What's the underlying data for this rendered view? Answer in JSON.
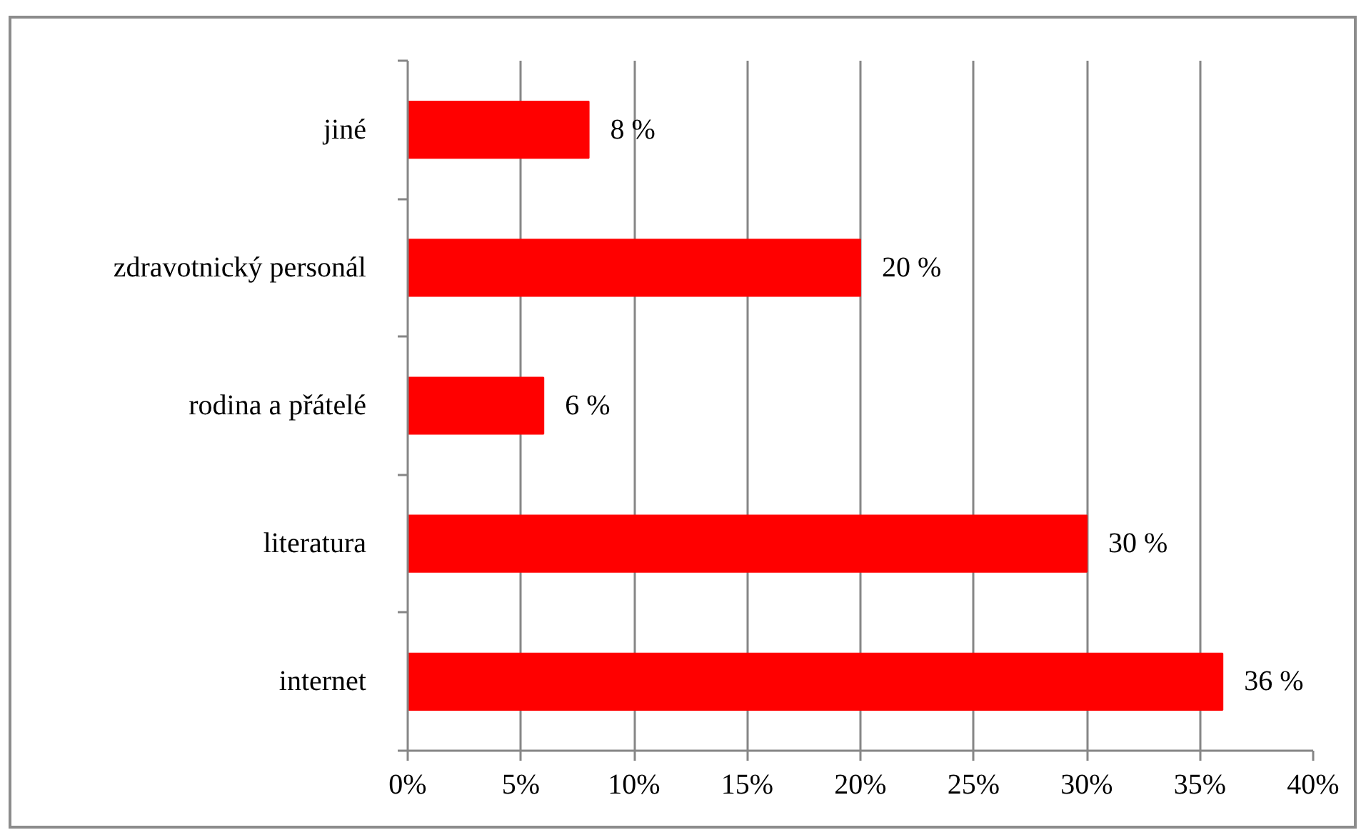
{
  "chart_data": {
    "type": "bar",
    "orientation": "horizontal",
    "categories": [
      "jiné",
      "zdravotnický personál",
      "rodina a přátelé",
      "literatura",
      "internet"
    ],
    "values": [
      8,
      20,
      6,
      30,
      36
    ],
    "value_labels": [
      "8 %",
      "20 %",
      "6 %",
      "30 %",
      "36 %"
    ],
    "color": "#ff0000",
    "xlim": [
      0,
      40
    ],
    "xticks": [
      {
        "value": 0,
        "label": "0%"
      },
      {
        "value": 5,
        "label": "5%"
      },
      {
        "value": 10,
        "label": "10%"
      },
      {
        "value": 15,
        "label": "15%"
      },
      {
        "value": 20,
        "label": "20%"
      },
      {
        "value": 25,
        "label": "25%"
      },
      {
        "value": 30,
        "label": "30%"
      },
      {
        "value": 35,
        "label": "35%"
      },
      {
        "value": 40,
        "label": "40%"
      }
    ],
    "grid": "x"
  }
}
